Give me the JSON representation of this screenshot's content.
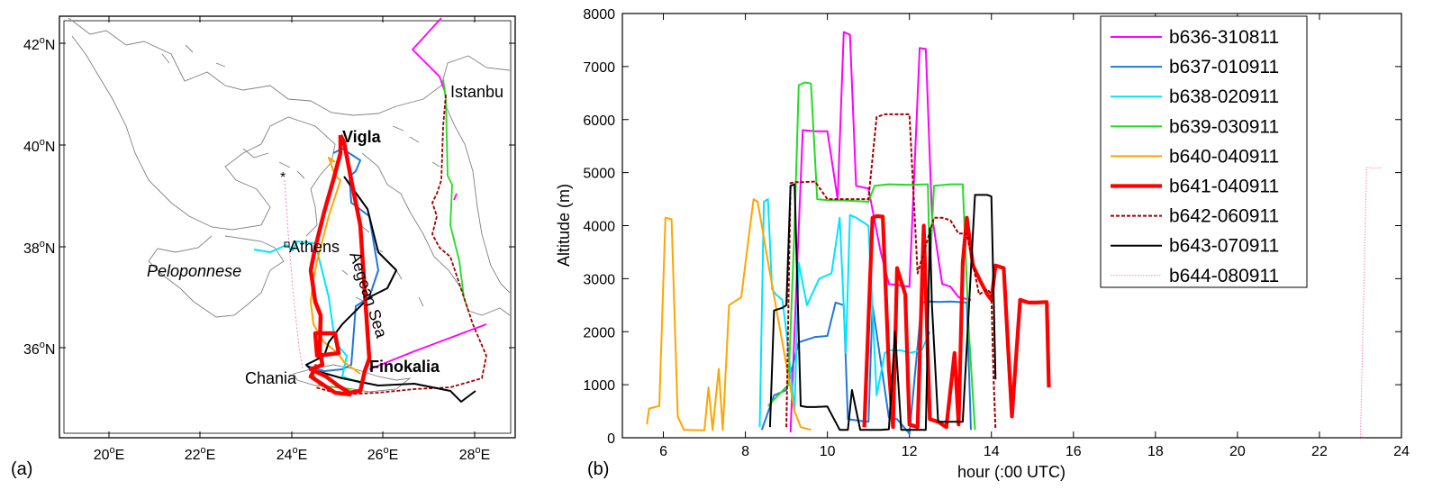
{
  "panels": {
    "a": "(a)",
    "b": "(b)"
  },
  "colors": {
    "b636-310811": "#ff00ff",
    "b637-010911": "#1f77e0",
    "b638-020911": "#00e5ff",
    "b639-030911": "#22dd22",
    "b640-040911": "#ffa500",
    "b641-040911": "#ff0000",
    "b642-060911": "#a00000",
    "b643-070911": "#000000",
    "b644-080911": "#ff80c0",
    "coast": "#808080"
  },
  "map": {
    "lat_ticks": [
      {
        "deg": "42",
        "sym": "o",
        "hemi": "N"
      },
      {
        "deg": "40",
        "sym": "o",
        "hemi": "N"
      },
      {
        "deg": "38",
        "sym": "o",
        "hemi": "N"
      },
      {
        "deg": "36",
        "sym": "o",
        "hemi": "N"
      }
    ],
    "lon_ticks": [
      {
        "deg": "20",
        "sym": "o",
        "hemi": "E"
      },
      {
        "deg": "22",
        "sym": "o",
        "hemi": "E"
      },
      {
        "deg": "24",
        "sym": "o",
        "hemi": "E"
      },
      {
        "deg": "26",
        "sym": "o",
        "hemi": "E"
      },
      {
        "deg": "28",
        "sym": "o",
        "hemi": "E"
      }
    ],
    "labels": {
      "vigla": "Vigla",
      "istanbul": "Istanbu",
      "athens": "Athens",
      "peloponnese": "Peloponnese",
      "aegean": "Aegean Sea",
      "finokalia": "Finokalia",
      "chania": "Chania",
      "star": "*"
    }
  },
  "chart_data": {
    "type": "line",
    "xlabel": "hour (:00 UTC)",
    "ylabel": "Altitude (m)",
    "xlim": [
      5,
      24
    ],
    "ylim": [
      0,
      8000
    ],
    "xticks": [
      6,
      8,
      10,
      12,
      14,
      16,
      18,
      20,
      22,
      24
    ],
    "yticks": [
      0,
      1000,
      2000,
      3000,
      4000,
      5000,
      6000,
      7000,
      8000
    ],
    "grid": false,
    "legend": "top-right",
    "series": [
      {
        "name": "b636-310811",
        "x": [
          9.1,
          9.25,
          9.4,
          9.7,
          10.0,
          10.25,
          10.4,
          10.55,
          10.7,
          11.0,
          11.3,
          11.5,
          12.0,
          12.25,
          12.4,
          12.55,
          12.8,
          13.0,
          13.2,
          13.5
        ],
        "y": [
          100,
          3000,
          5800,
          5780,
          5780,
          4500,
          7650,
          7600,
          4750,
          4700,
          3500,
          2900,
          2850,
          7350,
          7330,
          4200,
          2900,
          2850,
          2650,
          2600
        ]
      },
      {
        "name": "b637-010911",
        "x": [
          8.4,
          8.7,
          9.0,
          9.3,
          9.7,
          10.0,
          10.2,
          10.4,
          10.5,
          10.8,
          11.0,
          11.1,
          11.5,
          11.7,
          12.0,
          12.3,
          12.5,
          12.7,
          13.0,
          13.4,
          13.5
        ],
        "y": [
          150,
          800,
          900,
          1800,
          1900,
          1920,
          2550,
          2500,
          350,
          320,
          300,
          2500,
          380,
          350,
          80,
          2550,
          2570,
          2560,
          2570,
          2550,
          150
        ]
      },
      {
        "name": "b638-020911",
        "x": [
          8.35,
          8.45,
          8.55,
          8.65,
          8.75,
          8.9,
          9.0,
          9.2,
          9.3,
          9.5,
          9.8,
          10.1,
          10.3,
          10.45,
          10.55,
          10.7,
          11.0,
          11.2,
          11.4,
          11.5,
          11.8,
          12.0,
          12.3,
          12.5
        ],
        "y": [
          200,
          4450,
          4500,
          2800,
          2700,
          2600,
          2000,
          500,
          3300,
          2500,
          3000,
          3100,
          4150,
          1600,
          4200,
          4150,
          4000,
          800,
          1600,
          1650,
          1650,
          1600,
          1650,
          2000
        ]
      },
      {
        "name": "b639-030911",
        "x": [
          8.55,
          8.8,
          9.05,
          9.2,
          9.3,
          9.45,
          9.6,
          9.75,
          10.0,
          10.5,
          11.0,
          11.15,
          11.5,
          12.0,
          12.45,
          12.5,
          12.6,
          13.0,
          13.3,
          13.45,
          13.6
        ],
        "y": [
          600,
          800,
          1000,
          4000,
          6650,
          6700,
          6680,
          4500,
          4480,
          4470,
          4450,
          4750,
          4780,
          4770,
          4780,
          3200,
          4750,
          4780,
          4780,
          2000,
          150
        ]
      },
      {
        "name": "b640-040911",
        "x": [
          5.6,
          5.65,
          5.9,
          6.05,
          6.2,
          6.35,
          6.5,
          7.0,
          7.1,
          7.2,
          7.35,
          7.45,
          7.6,
          7.9,
          8.1,
          8.2,
          8.3,
          8.6,
          8.9,
          9.2,
          9.35,
          9.6
        ],
        "y": [
          250,
          550,
          600,
          4150,
          4120,
          400,
          150,
          140,
          950,
          150,
          1300,
          150,
          2500,
          2650,
          3900,
          4500,
          4450,
          3100,
          1800,
          500,
          200,
          150
        ]
      },
      {
        "name": "b641-040911",
        "x": [
          10.9,
          11.1,
          11.2,
          11.35,
          11.5,
          11.6,
          11.7,
          11.9,
          12.0,
          12.2,
          12.35,
          12.5,
          12.7,
          12.9,
          13.1,
          13.2,
          13.3,
          13.4,
          13.55,
          13.7,
          13.9,
          14.0,
          14.1,
          14.3,
          14.5,
          14.7,
          14.9,
          15.1,
          15.35,
          15.4
        ],
        "y": [
          200,
          4150,
          4180,
          4170,
          1300,
          200,
          3200,
          2700,
          250,
          200,
          4000,
          350,
          300,
          200,
          1600,
          250,
          3300,
          4150,
          3250,
          3000,
          2700,
          2600,
          3250,
          3200,
          400,
          2600,
          2550,
          2550,
          2560,
          950
        ]
      },
      {
        "name": "b642-060911",
        "x": [
          9.0,
          9.1,
          9.2,
          9.4,
          9.7,
          10.0,
          10.5,
          11.0,
          11.2,
          11.4,
          11.6,
          12.0,
          12.2,
          12.6,
          12.8,
          13.0,
          13.2,
          13.4,
          13.7,
          13.9,
          14.0,
          14.05,
          14.1
        ],
        "y": [
          200,
          4800,
          4820,
          4820,
          4830,
          4500,
          4500,
          4500,
          6050,
          6100,
          6100,
          6100,
          3100,
          4150,
          4150,
          4100,
          3850,
          3850,
          2700,
          2800,
          2700,
          1200,
          150
        ]
      },
      {
        "name": "b643-070911",
        "x": [
          8.6,
          8.7,
          8.9,
          9.0,
          9.1,
          9.2,
          9.35,
          9.5,
          9.7,
          10.0,
          10.3,
          10.5,
          10.6,
          10.8,
          11.0,
          11.3,
          11.5,
          11.65,
          11.8,
          12.0,
          12.2,
          12.4,
          12.5,
          12.55,
          12.7,
          12.9,
          13.1,
          13.3,
          13.6,
          13.9,
          14.0,
          14.1
        ],
        "y": [
          200,
          2400,
          2450,
          2500,
          4750,
          4780,
          600,
          580,
          580,
          590,
          150,
          150,
          900,
          150,
          150,
          150,
          160,
          2000,
          150,
          150,
          150,
          150,
          3950,
          2500,
          300,
          300,
          300,
          300,
          4580,
          4580,
          4550,
          1100
        ]
      },
      {
        "name": "b644-080911",
        "x": [
          23.0,
          23.15,
          23.3,
          23.5
        ],
        "y": [
          0,
          5100,
          5080,
          5090
        ]
      }
    ]
  }
}
